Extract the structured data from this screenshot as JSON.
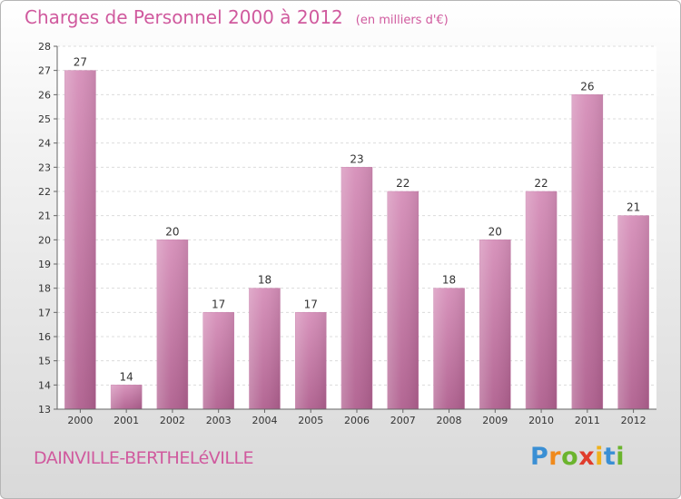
{
  "header": {
    "title": "Charges de Personnel 2000 à 2012",
    "subtitle": "(en milliers d'€)"
  },
  "footer": {
    "place": "DAINVILLE-BERTHELéVILLE",
    "logo": [
      "P",
      "r",
      "o",
      "x",
      "i",
      "t",
      "i"
    ],
    "logo_colors": [
      "#3a8fd4",
      "#f08a1c",
      "#6bb42d",
      "#e03c2c",
      "#f0b21c",
      "#3a8fd4",
      "#6bb42d"
    ]
  },
  "chart_data": {
    "type": "bar",
    "categories": [
      "2000",
      "2001",
      "2002",
      "2003",
      "2004",
      "2005",
      "2006",
      "2007",
      "2008",
      "2009",
      "2010",
      "2011",
      "2012"
    ],
    "values": [
      27,
      14,
      20,
      17,
      18,
      17,
      23,
      22,
      18,
      20,
      22,
      26,
      21
    ],
    "ylim": [
      13,
      28
    ],
    "yticks": [
      13,
      14,
      15,
      16,
      17,
      18,
      19,
      20,
      21,
      22,
      23,
      24,
      25,
      26,
      27,
      28
    ],
    "grid": true,
    "bar_color": "#d68fb9",
    "bar_color_dark": "#b0608f"
  }
}
